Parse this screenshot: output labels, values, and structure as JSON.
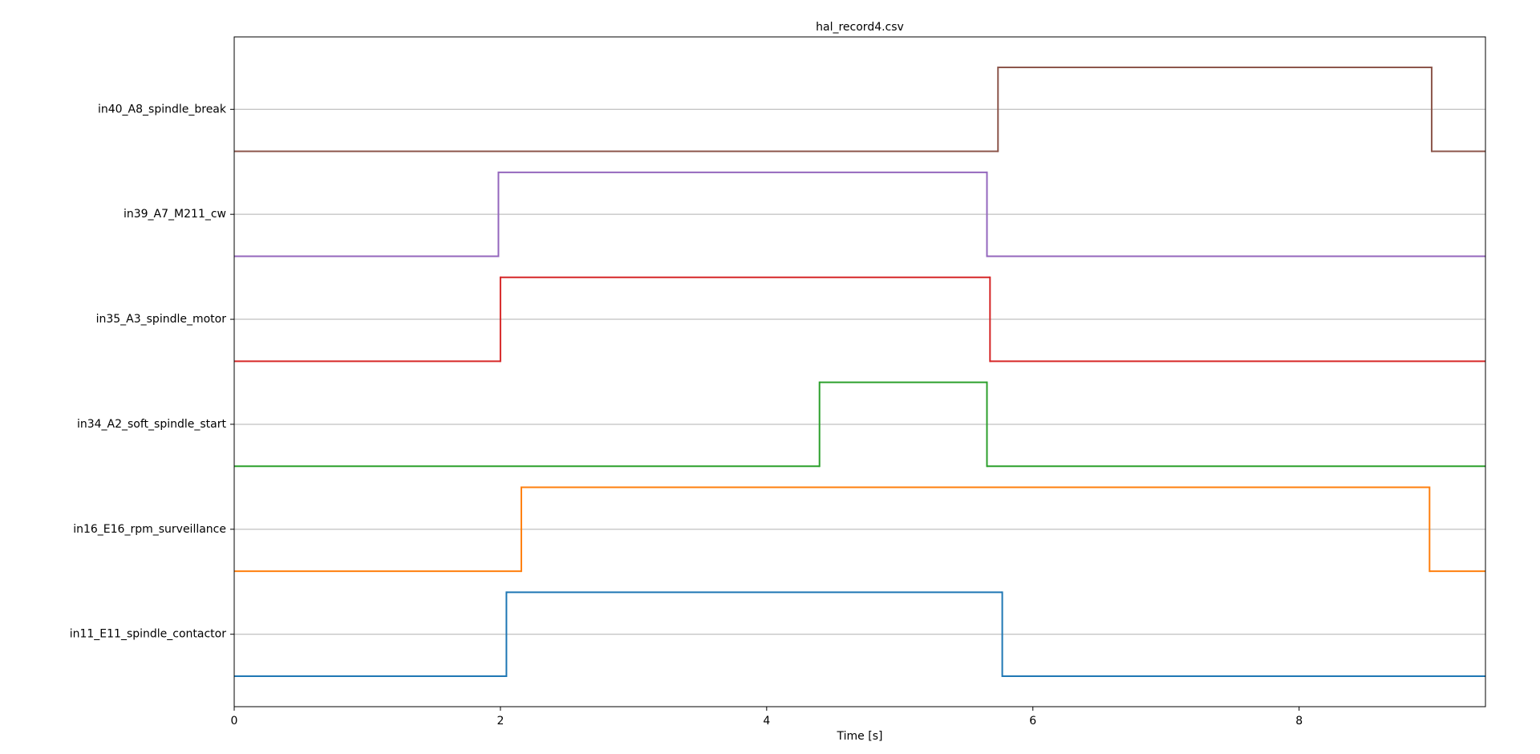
{
  "chart_data": {
    "type": "step",
    "title": "hal_record4.csv",
    "x_label": "Time [s]",
    "step": "post",
    "xlim": [
      0,
      9.4
    ],
    "xticks": [
      0,
      2,
      4,
      6,
      8
    ],
    "ylim": [
      -0.3625,
      7.6125
    ],
    "yticks": [
      {
        "value": 0.5,
        "label": "in11_E11_spindle_contactor"
      },
      {
        "value": 1.75,
        "label": "in16_E16_rpm_surveillance"
      },
      {
        "value": 3.0,
        "label": "in34_A2_soft_spindle_start"
      },
      {
        "value": 4.25,
        "label": "in35_A3_spindle_motor"
      },
      {
        "value": 5.5,
        "label": "in39_A7_M211_cw"
      },
      {
        "value": 6.75,
        "label": "in40_A8_spindle_break"
      }
    ],
    "grid": true,
    "series": [
      {
        "color": "#1f77b4",
        "x": [
          0,
          2.045,
          5.77
        ],
        "values": [
          0,
          1,
          0
        ]
      },
      {
        "color": "#ff7f0e",
        "x": [
          0,
          2.157,
          8.98
        ],
        "values": [
          1.25,
          2.25,
          1.25
        ]
      },
      {
        "color": "#2ca02c",
        "x": [
          0,
          4.397,
          5.655
        ],
        "values": [
          2.5,
          3.5,
          2.5
        ]
      },
      {
        "color": "#d62728",
        "x": [
          0,
          2.0,
          5.678
        ],
        "values": [
          3.75,
          4.75,
          3.75
        ]
      },
      {
        "color": "#9467bd",
        "x": [
          0,
          1.985,
          5.655
        ],
        "values": [
          5.0,
          6.0,
          5.0
        ]
      },
      {
        "color": "#8c564b",
        "x": [
          0,
          5.738,
          8.996
        ],
        "values": [
          6.25,
          7.25,
          6.25
        ]
      }
    ]
  }
}
